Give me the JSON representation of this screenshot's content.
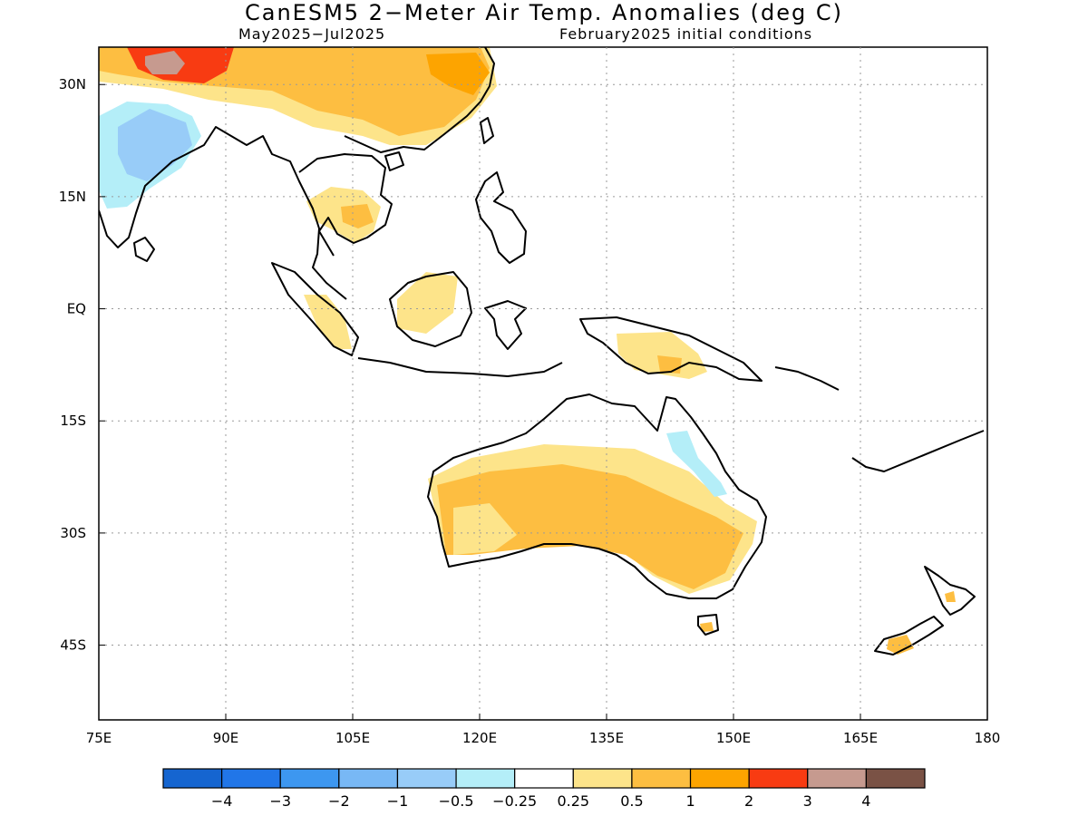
{
  "title": "CanESM5 2−Meter Air Temp. Anomalies (deg C)",
  "period": "May2025−Jul2025",
  "init": "February2025 initial conditions",
  "lat_labels": [
    "30N",
    "15N",
    "EQ",
    "15S",
    "30S",
    "45S"
  ],
  "lat_values": [
    30,
    15,
    0,
    -15,
    -30,
    -45
  ],
  "lon_labels": [
    "75E",
    "90E",
    "105E",
    "120E",
    "135E",
    "150E",
    "165E",
    "180"
  ],
  "lon_values": [
    75,
    90,
    105,
    120,
    135,
    150,
    165,
    180
  ],
  "map_extent": {
    "lon": [
      75,
      180
    ],
    "lat": [
      -55,
      35
    ]
  },
  "colorbar": {
    "colors": [
      "#1565d0",
      "#2176e8",
      "#3d97f0",
      "#78b8f5",
      "#98ccf8",
      "#b4eef8",
      "#ffffff",
      "#fde48a",
      "#fdbe41",
      "#fda400",
      "#f83b12",
      "#c69a8f",
      "#7a5245"
    ],
    "labels": [
      "−4",
      "−3",
      "−2",
      "−1",
      "−0.5",
      "−0.25",
      "0.25",
      "0.5",
      "1",
      "2",
      "3",
      "4"
    ]
  }
}
